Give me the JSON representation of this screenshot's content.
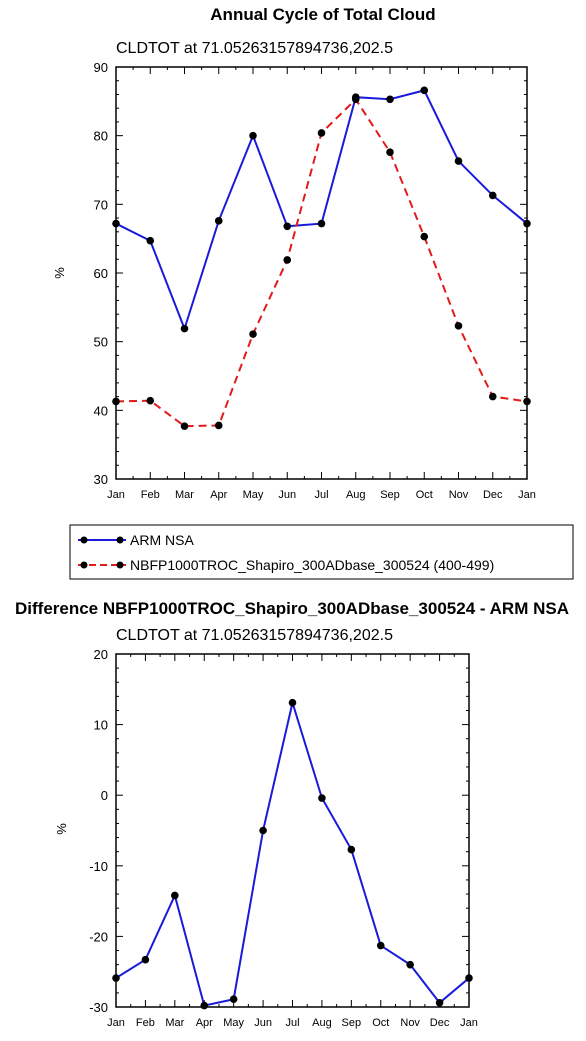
{
  "chart_data": [
    {
      "type": "line",
      "title": "Annual Cycle of Total Cloud",
      "subtitle": "CLDTOT at 71.05263157894736,202.5",
      "ylabel": "%",
      "categories": [
        "Jan",
        "Feb",
        "Mar",
        "Apr",
        "May",
        "Jun",
        "Jul",
        "Aug",
        "Sep",
        "Oct",
        "Nov",
        "Dec",
        "Jan"
      ],
      "ylim": [
        30,
        90
      ],
      "yticks": [
        30,
        40,
        50,
        60,
        70,
        80,
        90
      ],
      "legend_position": "bottom",
      "series": [
        {
          "name": "ARM NSA",
          "color": "#1a1adb",
          "dash": "solid",
          "values": [
            67.2,
            64.7,
            51.9,
            67.6,
            80.0,
            66.8,
            67.2,
            85.6,
            85.3,
            86.6,
            76.3,
            71.3,
            67.2
          ]
        },
        {
          "name": "NBFP1000TROC_Shapiro_300ADbase_300524 (400-499)",
          "color": "#e11a1a",
          "dash": "dashed",
          "values": [
            41.3,
            41.4,
            37.7,
            37.8,
            51.1,
            61.9,
            80.4,
            85.3,
            77.6,
            65.3,
            52.3,
            42.0,
            41.3
          ]
        }
      ]
    },
    {
      "type": "line",
      "title": "Difference NBFP1000TROC_Shapiro_300ADbase_300524 - ARM NSA",
      "subtitle": "CLDTOT at 71.05263157894736,202.5",
      "ylabel": "%",
      "categories": [
        "Jan",
        "Feb",
        "Mar",
        "Apr",
        "May",
        "Jun",
        "Jul",
        "Aug",
        "Sep",
        "Oct",
        "Nov",
        "Dec",
        "Jan"
      ],
      "ylim": [
        -30,
        20
      ],
      "yticks": [
        -30,
        -20,
        -10,
        0,
        10,
        20
      ],
      "series": [
        {
          "color": "#1a1adb",
          "dash": "solid",
          "values": [
            -25.9,
            -23.3,
            -14.2,
            -29.8,
            -28.9,
            -5.0,
            13.1,
            -0.4,
            -7.7,
            -21.3,
            -24.0,
            -29.4,
            -25.9
          ]
        }
      ]
    }
  ]
}
